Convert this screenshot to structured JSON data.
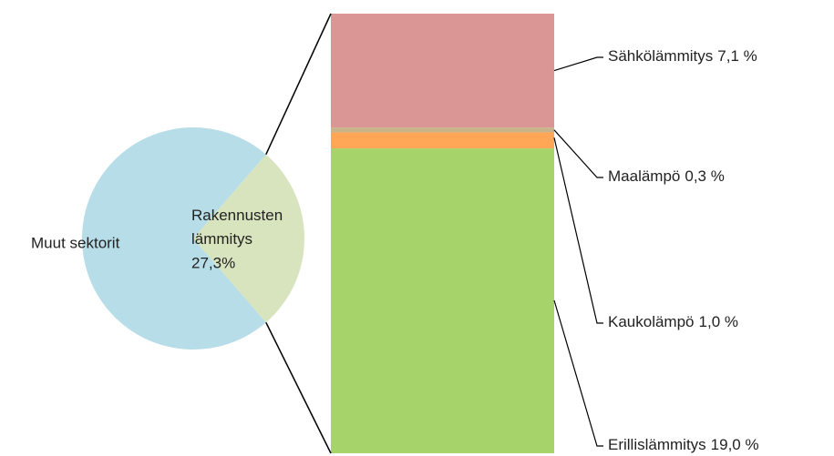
{
  "chart_data": [
    {
      "type": "pie",
      "categories": [
        "Muut sektorit",
        "Rakennusten lämmitys"
      ],
      "values": [
        72.7,
        27.3
      ],
      "value_labels": [
        null,
        "27,3%"
      ],
      "colors": [
        "#b7dde8",
        "#d7e4bd"
      ]
    },
    {
      "type": "stacked-bar",
      "categories": [
        "Sähkölämmitys",
        "Maalämpö",
        "Kaukolämpö",
        "Erillislämmitys"
      ],
      "values": [
        7.1,
        0.3,
        1.0,
        19.0
      ],
      "value_labels": [
        "7,1 %",
        "0,3 %",
        "1,0 %",
        "19,0 %"
      ],
      "colors": [
        "#d99694",
        "#c9b38a",
        "#ffa756",
        "#a6d46a"
      ]
    }
  ]
}
